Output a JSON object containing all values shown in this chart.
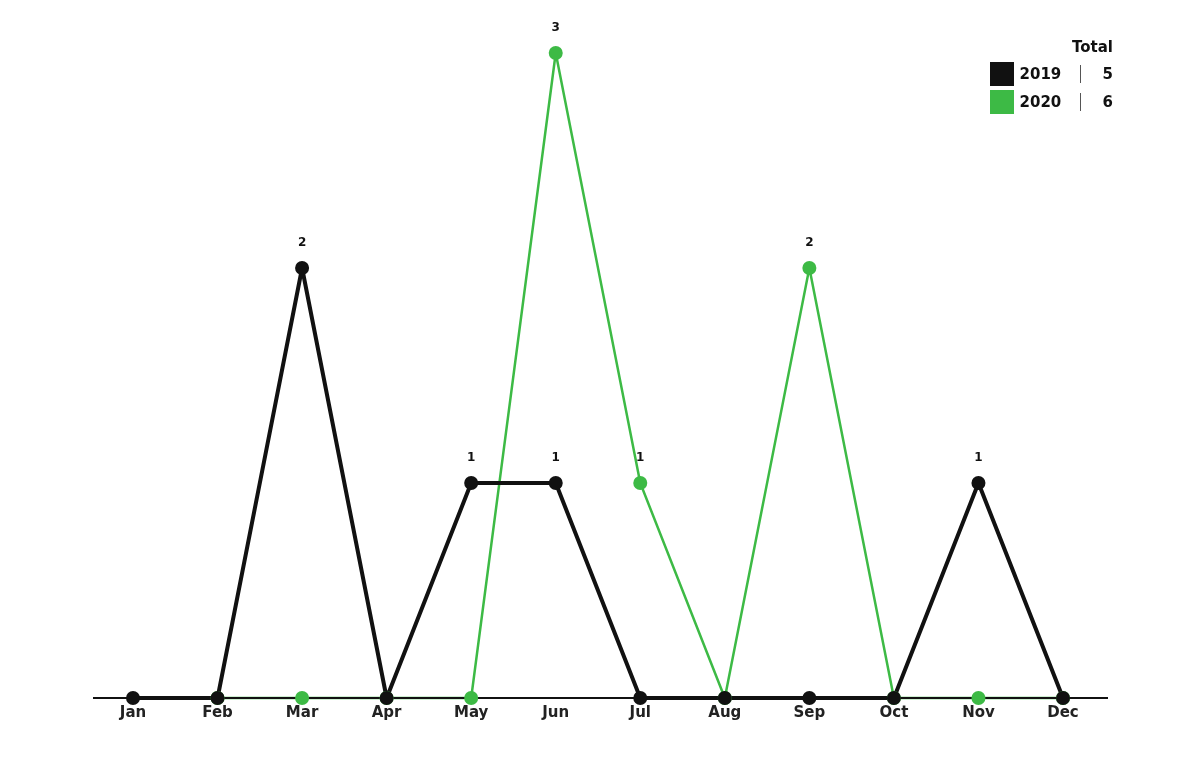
{
  "chart_data": {
    "type": "line",
    "categories": [
      "Jan",
      "Feb",
      "Mar",
      "Apr",
      "May",
      "Jun",
      "Jul",
      "Aug",
      "Sep",
      "Oct",
      "Nov",
      "Dec"
    ],
    "series": [
      {
        "name": "2019",
        "color": "#111111",
        "values": [
          0,
          0,
          2,
          0,
          1,
          1,
          0,
          0,
          0,
          0,
          1,
          0
        ],
        "value_labels": [
          null,
          null,
          "2",
          null,
          "1",
          "1",
          null,
          null,
          null,
          null,
          "1",
          null
        ]
      },
      {
        "name": "2020",
        "color": "#3dba45",
        "values": [
          null,
          0,
          0,
          0,
          0,
          3,
          1,
          0,
          2,
          0,
          0,
          0
        ],
        "value_labels": [
          null,
          null,
          null,
          null,
          null,
          "3",
          "1",
          null,
          "2",
          null,
          null,
          null
        ]
      }
    ],
    "legend_title": "Total",
    "annotations": [
      "5",
      "6"
    ],
    "legend": "top right",
    "marker": "circle"
  }
}
